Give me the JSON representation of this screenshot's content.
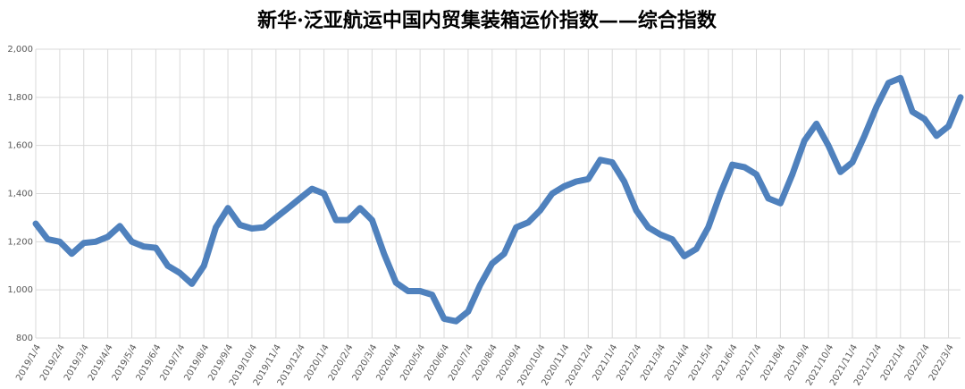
{
  "chart_data": {
    "type": "line",
    "title": "新华·泛亚航运中国内贸集装箱运价指数——综合指数",
    "categories": [
      "2019/1/4",
      null,
      "2019/2/4",
      null,
      "2019/3/4",
      null,
      "2019/4/4",
      null,
      "2019/5/4",
      null,
      "2019/6/4",
      null,
      "2019/7/4",
      null,
      "2019/8/4",
      null,
      "2019/9/4",
      null,
      "2019/10/4",
      null,
      "2019/11/4",
      null,
      "2019/12/4",
      null,
      "2020/1/4",
      null,
      "2020/2/4",
      null,
      "2020/3/4",
      null,
      "2020/4/4",
      null,
      "2020/5/4",
      null,
      "2020/6/4",
      null,
      "2020/7/4",
      null,
      "2020/8/4",
      null,
      "2020/9/4",
      null,
      "2020/10/4",
      null,
      "2020/11/4",
      null,
      "2020/12/4",
      null,
      "2021/1/4",
      null,
      "2021/2/4",
      null,
      "2021/3/4",
      null,
      "2021/4/4",
      null,
      "2021/5/4",
      null,
      "2021/6/4",
      null,
      "2021/7/4",
      null,
      "2021/8/4",
      null,
      "2021/9/4",
      null,
      "2021/10/4",
      null,
      "2021/11/4",
      null,
      "2021/12/4",
      null,
      "2022/1/4",
      null,
      "2022/2/4",
      null,
      "2022/3/4",
      null
    ],
    "series": [
      {
        "name": "综合指数",
        "color": "#4f81bd",
        "values": [
          1275,
          1210,
          1200,
          1150,
          1195,
          1200,
          1220,
          1265,
          1200,
          1180,
          1175,
          1100,
          1070,
          1025,
          1100,
          1260,
          1340,
          1270,
          1255,
          1260,
          1300,
          1340,
          1380,
          1420,
          1400,
          1290,
          1290,
          1340,
          1290,
          1150,
          1030,
          995,
          995,
          980,
          880,
          870,
          910,
          1020,
          1110,
          1150,
          1260,
          1280,
          1330,
          1400,
          1430,
          1450,
          1460,
          1540,
          1530,
          1450,
          1330,
          1260,
          1230,
          1210,
          1140,
          1170,
          1260,
          1400,
          1520,
          1510,
          1480,
          1380,
          1360,
          1480,
          1620,
          1690,
          1600,
          1490,
          1530,
          1640,
          1760,
          1860,
          1880,
          1740,
          1710,
          1640,
          1680,
          1800
        ]
      }
    ],
    "ylim": [
      800,
      2000
    ],
    "yticks": [
      {
        "value": 800,
        "label": "800"
      },
      {
        "value": 1000,
        "label": "1,000"
      },
      {
        "value": 1200,
        "label": "1,200"
      },
      {
        "value": 1400,
        "label": "1,400"
      },
      {
        "value": 1600,
        "label": "1,600"
      },
      {
        "value": 1800,
        "label": "1,800"
      },
      {
        "value": 2000,
        "label": "2,000"
      }
    ],
    "grid": true
  }
}
